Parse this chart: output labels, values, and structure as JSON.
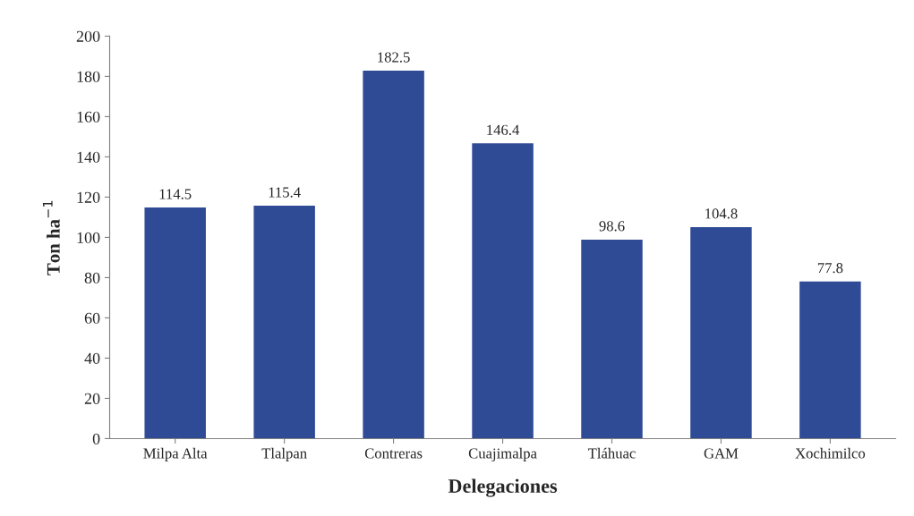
{
  "chart_data": {
    "type": "bar",
    "xlabel": "Delegaciones",
    "ylabel": "Ton ha$^{−1}$",
    "categories": [
      "Milpa Alta",
      "Tlalpan",
      "Contreras",
      "Cuajimalpa",
      "Tláhuac",
      "GAM",
      "Xochimilco"
    ],
    "values": [
      114.5,
      115.4,
      182.5,
      146.4,
      98.6,
      104.8,
      77.8
    ],
    "color": "#2f4b96",
    "ylim": [
      0,
      200
    ],
    "yticks": [
      0,
      20,
      40,
      60,
      80,
      100,
      120,
      140,
      160,
      180,
      200
    ],
    "data_labels": true,
    "grid": false
  }
}
